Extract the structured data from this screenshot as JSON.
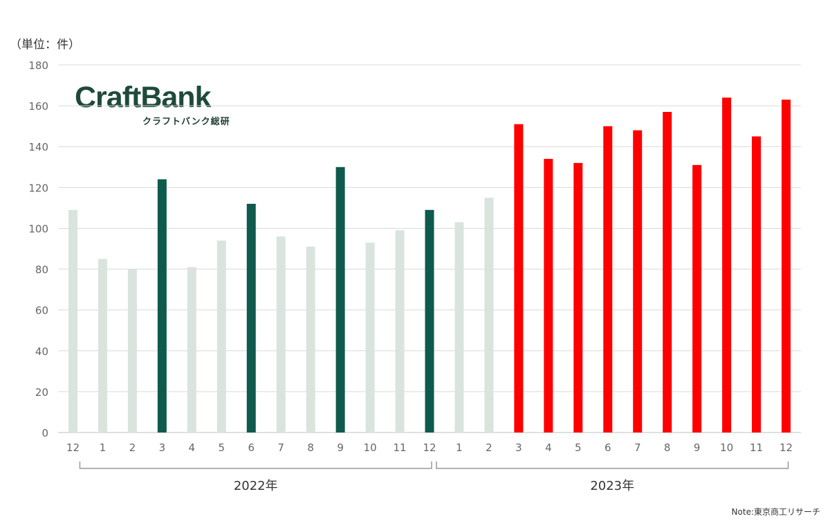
{
  "unit_label": "（単位：件）",
  "logo": {
    "main": "CraftBank",
    "sub": "クラフトバンク総研"
  },
  "note": "Note:東京商工リサーチ",
  "colors": {
    "faded": "#d9e4df",
    "highlight2022": "#0e5a4c",
    "highlight2023": "#ff0000",
    "grid": "#d9d9d9",
    "axis_text": "#666666"
  },
  "chart_data": {
    "type": "bar",
    "categories": [
      "12",
      "1",
      "2",
      "3",
      "4",
      "5",
      "6",
      "7",
      "8",
      "9",
      "10",
      "11",
      "12",
      "1",
      "2",
      "3",
      "4",
      "5",
      "6",
      "7",
      "8",
      "9",
      "10",
      "11",
      "12"
    ],
    "values": [
      109,
      85,
      80,
      124,
      81,
      94,
      112,
      96,
      91,
      130,
      93,
      99,
      109,
      103,
      115,
      151,
      134,
      132,
      150,
      148,
      157,
      131,
      164,
      145,
      163
    ],
    "bar_colors": [
      "faded",
      "faded",
      "faded",
      "highlight2022",
      "faded",
      "faded",
      "highlight2022",
      "faded",
      "faded",
      "highlight2022",
      "faded",
      "faded",
      "highlight2022",
      "faded",
      "faded",
      "highlight2023",
      "highlight2023",
      "highlight2023",
      "highlight2023",
      "highlight2023",
      "highlight2023",
      "highlight2023",
      "highlight2023",
      "highlight2023",
      "highlight2023"
    ],
    "ylim": [
      0,
      180
    ],
    "yticks": [
      0,
      20,
      40,
      60,
      80,
      100,
      120,
      140,
      160,
      180
    ],
    "grid": true,
    "groups": [
      {
        "label": "2022年",
        "from": 1,
        "to": 12
      },
      {
        "label": "2023年",
        "from": 13,
        "to": 24
      }
    ]
  }
}
